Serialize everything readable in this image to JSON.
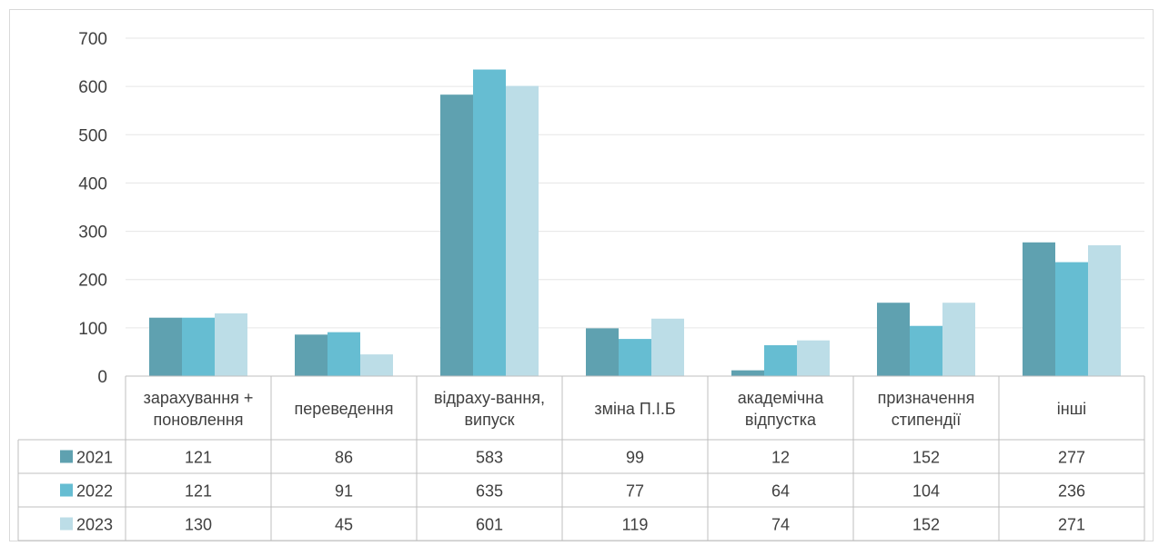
{
  "chart_data": {
    "type": "bar",
    "categories": [
      [
        "зарахування +",
        "поновлення"
      ],
      [
        "переведення"
      ],
      [
        "відраху-вання,",
        "випуск"
      ],
      [
        "зміна П.І.Б"
      ],
      [
        "академічна",
        "відпустка"
      ],
      [
        "призначення",
        "стипендії"
      ],
      [
        "інші"
      ]
    ],
    "series": [
      {
        "name": "2021",
        "color": "#5fa1b0",
        "values": [
          121,
          86,
          583,
          99,
          12,
          152,
          277
        ]
      },
      {
        "name": "2022",
        "color": "#66bdd2",
        "values": [
          121,
          91,
          635,
          77,
          64,
          104,
          236
        ]
      },
      {
        "name": "2023",
        "color": "#bcdde7",
        "values": [
          130,
          45,
          601,
          119,
          74,
          152,
          271
        ]
      }
    ],
    "yticks": [
      "0",
      "100",
      "200",
      "300",
      "400",
      "500",
      "600",
      "700"
    ],
    "ylim": [
      0,
      700
    ],
    "grid": true,
    "data_table": true
  }
}
